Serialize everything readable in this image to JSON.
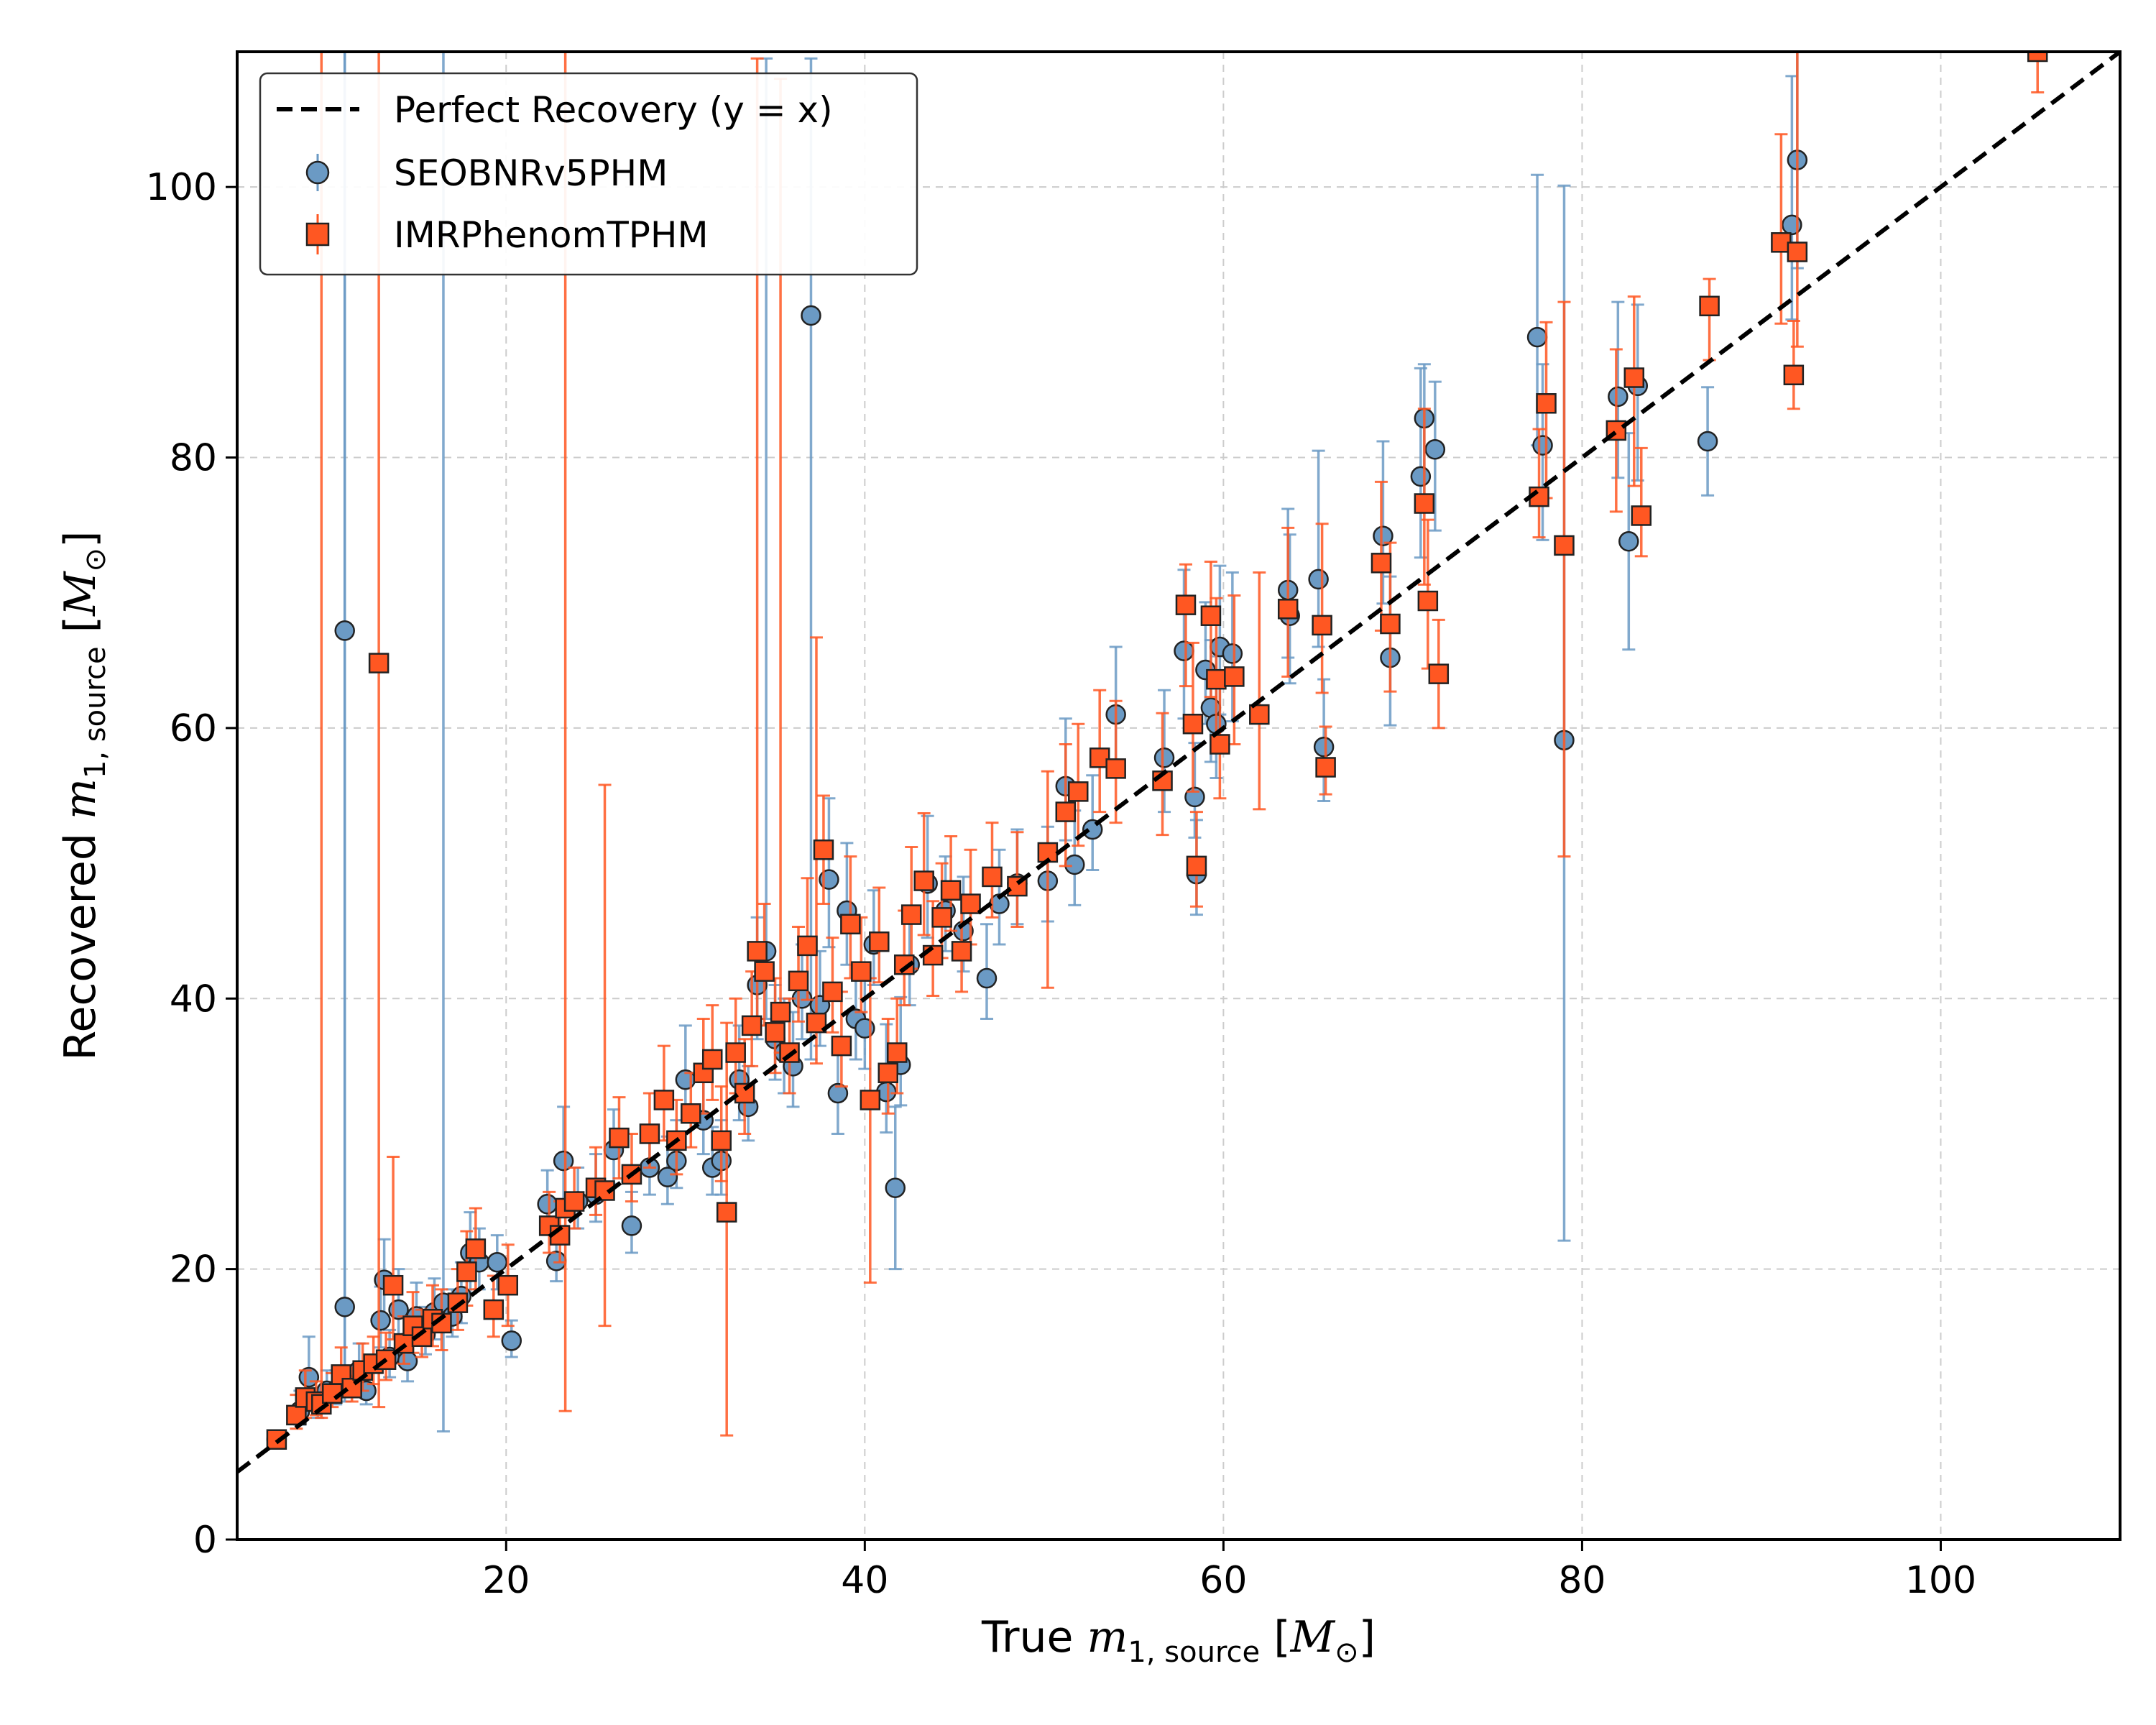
{
  "chart_data": {
    "type": "scatter",
    "title": "",
    "xlabel": {
      "prefix": "True ",
      "symbol": "m",
      "sub": "1, source",
      "unit_open": " [",
      "unit_symbol": "M",
      "unit_sub": "⊙",
      "unit_close": "]"
    },
    "ylabel": {
      "prefix": "Recovered ",
      "symbol": "m",
      "sub": "1, source",
      "unit_open": " [",
      "unit_symbol": "M",
      "unit_sub": "⊙",
      "unit_close": "]"
    },
    "xlim": [
      5,
      110
    ],
    "ylim": [
      0,
      110
    ],
    "xticks": [
      20,
      40,
      60,
      80,
      100
    ],
    "yticks": [
      0,
      20,
      40,
      60,
      80,
      100
    ],
    "grid": true,
    "legend_position": "top-left",
    "reference_line": {
      "label": "Perfect Recovery (y = x)",
      "slope": 1,
      "intercept": 0,
      "color": "#000000",
      "style": "dashed"
    },
    "series": [
      {
        "name": "SEOBNRv5PHM",
        "marker": "circle",
        "color": "#6b9ac4",
        "points": [
          [
            7.2,
            7.4,
            0.6,
            0.6
          ],
          [
            8.5,
            9.5,
            1,
            1.5
          ],
          [
            9,
            12,
            2,
            3
          ],
          [
            9.5,
            10,
            1,
            1.2
          ],
          [
            10,
            11,
            1,
            1.5
          ],
          [
            10.5,
            11,
            1,
            1.5
          ],
          [
            11,
            17.2,
            6,
            96
          ],
          [
            11,
            67.2,
            57,
            46
          ],
          [
            11.8,
            12.5,
            1.5,
            2
          ],
          [
            12.2,
            11,
            1,
            1.5
          ],
          [
            13,
            16.2,
            2,
            2.5
          ],
          [
            13.2,
            19.2,
            3,
            3
          ],
          [
            13.5,
            13.5,
            1.5,
            2
          ],
          [
            14,
            17,
            2,
            3
          ],
          [
            14.5,
            13.2,
            1.5,
            2
          ],
          [
            15,
            16.5,
            2,
            2.5
          ],
          [
            15.5,
            15.2,
            1.5,
            2
          ],
          [
            16,
            16.8,
            2,
            2.5
          ],
          [
            16.5,
            17.5,
            9.5,
            95
          ],
          [
            17,
            16.5,
            1.5,
            2
          ],
          [
            17.5,
            18,
            2,
            2.5
          ],
          [
            18,
            21.2,
            3,
            3
          ],
          [
            18.5,
            20.5,
            2,
            2.5
          ],
          [
            19.5,
            20.5,
            2,
            2
          ],
          [
            20.3,
            14.7,
            1.2,
            1.5
          ],
          [
            22.3,
            24.8,
            2,
            2.5
          ],
          [
            22.8,
            20.6,
            1.5,
            2
          ],
          [
            23.2,
            28,
            3,
            4
          ],
          [
            24,
            25,
            2,
            2.5
          ],
          [
            25,
            25.5,
            2,
            3
          ],
          [
            26,
            28.8,
            2.5,
            3
          ],
          [
            27,
            23.2,
            2,
            2.5
          ],
          [
            28,
            27.5,
            2,
            3
          ],
          [
            29,
            26.8,
            2,
            3
          ],
          [
            29.5,
            28,
            2,
            3
          ],
          [
            30,
            34,
            3,
            4
          ],
          [
            31,
            31,
            2.5,
            3
          ],
          [
            31.5,
            27.5,
            2,
            3
          ],
          [
            32,
            28,
            2.5,
            3
          ],
          [
            33,
            34,
            3,
            4
          ],
          [
            33.5,
            32,
            2.5,
            3
          ],
          [
            34,
            41,
            4,
            5
          ],
          [
            34.5,
            43.5,
            5,
            66
          ],
          [
            35,
            37,
            3,
            4
          ],
          [
            35.5,
            36,
            3,
            4
          ],
          [
            36,
            35,
            3,
            4
          ],
          [
            36.5,
            40,
            3,
            4
          ],
          [
            37,
            90.5,
            55,
            19
          ],
          [
            37.5,
            39.5,
            3,
            4
          ],
          [
            38,
            48.8,
            5,
            6
          ],
          [
            38.5,
            33,
            3,
            4
          ],
          [
            39,
            46.5,
            4,
            5
          ],
          [
            39.5,
            38.5,
            3,
            4
          ],
          [
            40,
            37.8,
            3,
            4
          ],
          [
            40.5,
            44,
            3,
            4
          ],
          [
            41.2,
            33.1,
            3,
            5
          ],
          [
            41.7,
            26,
            6,
            6
          ],
          [
            42,
            35.1,
            3,
            5
          ],
          [
            42.5,
            42.5,
            3,
            4
          ],
          [
            43.5,
            48.5,
            4,
            5
          ],
          [
            44.5,
            46.5,
            3,
            4
          ],
          [
            45.5,
            45,
            3,
            4
          ],
          [
            46.8,
            41.5,
            3,
            4
          ],
          [
            47.5,
            47,
            3,
            4
          ],
          [
            48.5,
            48.5,
            3,
            4
          ],
          [
            50.2,
            48.7,
            3,
            4
          ],
          [
            51.2,
            55.7,
            4,
            5
          ],
          [
            51.7,
            49.9,
            3,
            4
          ],
          [
            52.7,
            52.5,
            3,
            4
          ],
          [
            54,
            61,
            4,
            5
          ],
          [
            56.7,
            57.8,
            4,
            5
          ],
          [
            57.8,
            65.7,
            5,
            6
          ],
          [
            58.4,
            54.9,
            3,
            4
          ],
          [
            58.5,
            49.2,
            3,
            4
          ],
          [
            59,
            64.3,
            4,
            5
          ],
          [
            59.3,
            61.5,
            4,
            5
          ],
          [
            59.6,
            60.3,
            4,
            5
          ],
          [
            59.8,
            66,
            5,
            6
          ],
          [
            60.5,
            65.5,
            5,
            6
          ],
          [
            63.6,
            70.2,
            5,
            6
          ],
          [
            63.7,
            68.3,
            5,
            6
          ],
          [
            65.3,
            71,
            5,
            9.5
          ],
          [
            65.6,
            58.6,
            4,
            5
          ],
          [
            68.9,
            74.2,
            5,
            7
          ],
          [
            69.3,
            65.2,
            5,
            6
          ],
          [
            71,
            78.6,
            6,
            8
          ],
          [
            71.2,
            82.9,
            6,
            4
          ],
          [
            71.8,
            80.6,
            6,
            5
          ],
          [
            77.5,
            88.9,
            8,
            12
          ],
          [
            77.8,
            80.9,
            7,
            6
          ],
          [
            79,
            59.1,
            37,
            41
          ],
          [
            82,
            84.5,
            6,
            7
          ],
          [
            82.6,
            73.8,
            8,
            8
          ],
          [
            83.1,
            85.3,
            7,
            6
          ],
          [
            87,
            81.2,
            4,
            4
          ],
          [
            91.7,
            97.2,
            7,
            11
          ],
          [
            92,
            102,
            8,
            8
          ]
        ]
      },
      {
        "name": "IMRPhenomTPHM",
        "marker": "square",
        "color": "#ff5722",
        "points": [
          [
            7.2,
            7.4,
            0.6,
            0.6
          ],
          [
            8.3,
            9.2,
            1,
            1.5
          ],
          [
            8.8,
            10.5,
            1.5,
            2
          ],
          [
            9.4,
            10.2,
            1,
            1.5
          ],
          [
            9.7,
            10,
            1,
            104
          ],
          [
            10.3,
            10.8,
            1,
            1.5
          ],
          [
            10.8,
            12.2,
            1.5,
            2
          ],
          [
            11.4,
            11.2,
            1,
            1.5
          ],
          [
            12,
            12.5,
            1.5,
            2
          ],
          [
            12.6,
            13,
            1.5,
            2
          ],
          [
            12.9,
            64.8,
            55,
            49
          ],
          [
            13.3,
            13.3,
            1.5,
            2
          ],
          [
            13.7,
            18.8,
            4,
            9.5
          ],
          [
            14.3,
            14.5,
            1.5,
            2
          ],
          [
            14.8,
            15.8,
            2,
            2.5
          ],
          [
            15.3,
            15,
            1.5,
            2
          ],
          [
            15.9,
            16.3,
            2,
            2.5
          ],
          [
            16.4,
            16,
            2,
            2.5
          ],
          [
            17.3,
            17.5,
            2,
            2.5
          ],
          [
            17.8,
            19.8,
            2.5,
            3
          ],
          [
            18.3,
            21.5,
            3,
            3
          ],
          [
            19.3,
            17,
            2,
            2.5
          ],
          [
            20.1,
            18.8,
            3,
            3
          ],
          [
            22.4,
            23.2,
            2,
            2.5
          ],
          [
            23,
            22.5,
            2,
            2.5
          ],
          [
            23.3,
            24.5,
            15,
            95
          ],
          [
            23.8,
            25,
            2,
            2.5
          ],
          [
            25,
            26,
            2,
            3
          ],
          [
            25.5,
            25.8,
            10,
            30
          ],
          [
            26.3,
            29.7,
            3,
            3
          ],
          [
            27,
            27,
            2,
            3
          ],
          [
            28,
            30,
            2.5,
            3
          ],
          [
            28.8,
            32.5,
            3,
            4
          ],
          [
            29.5,
            29.5,
            2.5,
            3
          ],
          [
            30.3,
            31.5,
            2.5,
            3
          ],
          [
            31,
            34.5,
            3,
            4
          ],
          [
            31.5,
            35.5,
            3,
            4
          ],
          [
            32,
            29.5,
            3,
            4
          ],
          [
            32.3,
            24.2,
            16.5,
            14
          ],
          [
            32.8,
            36,
            3,
            4
          ],
          [
            33.3,
            33,
            3,
            4
          ],
          [
            33.7,
            38,
            3,
            4
          ],
          [
            34,
            43.5,
            5,
            66
          ],
          [
            34.4,
            42,
            4,
            5
          ],
          [
            35,
            37.5,
            3,
            4
          ],
          [
            35.3,
            39,
            3,
            69
          ],
          [
            35.8,
            36,
            3,
            4
          ],
          [
            36.3,
            41.3,
            3,
            4
          ],
          [
            36.8,
            43.9,
            4,
            5
          ],
          [
            37.3,
            38.2,
            3,
            28.5
          ],
          [
            37.7,
            51,
            4,
            4
          ],
          [
            38.2,
            40.5,
            3,
            4
          ],
          [
            38.7,
            36.5,
            3,
            4
          ],
          [
            39.2,
            45.5,
            4,
            5
          ],
          [
            39.8,
            42,
            3,
            4
          ],
          [
            40.3,
            32.5,
            13.5,
            9
          ],
          [
            40.8,
            44.2,
            3,
            4
          ],
          [
            41.3,
            34.5,
            3,
            4
          ],
          [
            41.8,
            36,
            3,
            4
          ],
          [
            42.2,
            42.5,
            3,
            4
          ],
          [
            42.6,
            46.2,
            4,
            5
          ],
          [
            43.3,
            48.7,
            4,
            5
          ],
          [
            43.8,
            43.2,
            3,
            4
          ],
          [
            44.3,
            46,
            3,
            4
          ],
          [
            44.8,
            48,
            3,
            4
          ],
          [
            45.4,
            43.5,
            3,
            4
          ],
          [
            45.9,
            47,
            3,
            4
          ],
          [
            47.1,
            49,
            3,
            4
          ],
          [
            48.5,
            48.3,
            3,
            4
          ],
          [
            50.2,
            50.8,
            10,
            6
          ],
          [
            51.2,
            53.8,
            4,
            5
          ],
          [
            51.9,
            55.3,
            4,
            5
          ],
          [
            53.1,
            57.8,
            4,
            5
          ],
          [
            54,
            57,
            4,
            5
          ],
          [
            56.6,
            56.1,
            4,
            5
          ],
          [
            57.9,
            69.1,
            6,
            3
          ],
          [
            58.3,
            60.3,
            5,
            6
          ],
          [
            58.5,
            49.8,
            3,
            4
          ],
          [
            59.3,
            68.3,
            6,
            4
          ],
          [
            59.6,
            63.6,
            5,
            6
          ],
          [
            59.8,
            58.8,
            4,
            5
          ],
          [
            60.6,
            63.8,
            5,
            6
          ],
          [
            62,
            61,
            7,
            10.5
          ],
          [
            63.6,
            68.8,
            5,
            6
          ],
          [
            65.5,
            67.6,
            5,
            7.5
          ],
          [
            65.7,
            57.1,
            2,
            3
          ],
          [
            68.8,
            72.2,
            5,
            6
          ],
          [
            69.3,
            67.7,
            5,
            6
          ],
          [
            71.2,
            76.6,
            6,
            7
          ],
          [
            71.4,
            69.4,
            5,
            6
          ],
          [
            72,
            64,
            4,
            4
          ],
          [
            77.6,
            77.1,
            3,
            5
          ],
          [
            78,
            84,
            7,
            6
          ],
          [
            79,
            73.5,
            23,
            18
          ],
          [
            81.9,
            82,
            6,
            6
          ],
          [
            82.9,
            85.9,
            8,
            6
          ],
          [
            83.3,
            75.7,
            3,
            5
          ],
          [
            87.1,
            91.2,
            4,
            2
          ],
          [
            91.1,
            95.9,
            6,
            8
          ],
          [
            91.8,
            86.1,
            2.5,
            4
          ],
          [
            92,
            95.2,
            7,
            16
          ],
          [
            105.4,
            110,
            3,
            3
          ]
        ]
      }
    ]
  }
}
